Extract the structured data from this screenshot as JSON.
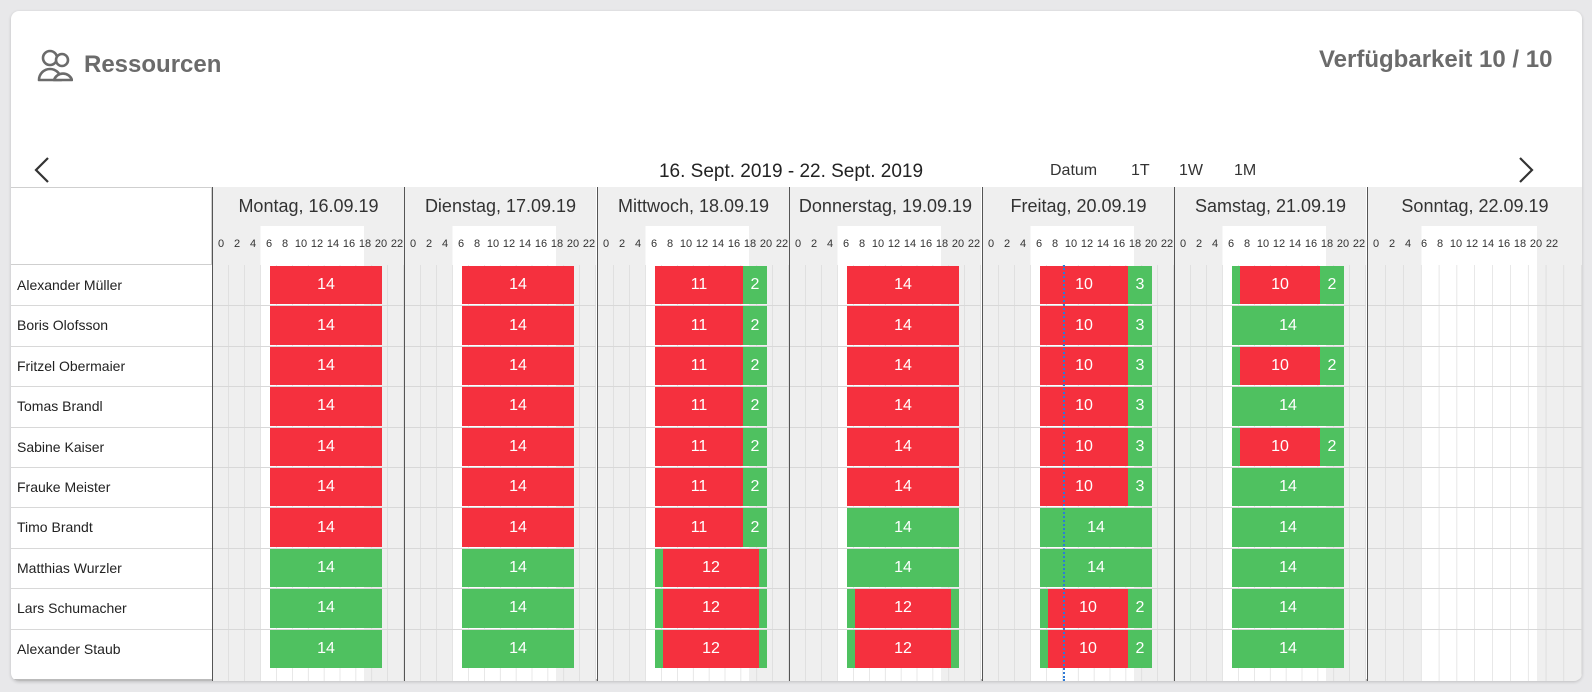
{
  "header": {
    "title": "Ressourcen",
    "availability": "Verfügbarkeit  10 / 10"
  },
  "nav": {
    "range": "16. Sept. 2019 - 22. Sept. 2019",
    "views": [
      "Datum",
      "1T",
      "1W",
      "1M"
    ]
  },
  "colors": {
    "busy": "#f5303e",
    "free": "#4fc160",
    "now": "#2e7bd6"
  },
  "days": [
    "Montag, 16.09.19",
    "Dienstag, 17.09.19",
    "Mittwoch, 18.09.19",
    "Donnerstag, 19.09.19",
    "Freitag, 20.09.19",
    "Samstag, 21.09.19",
    "Sonntag, 22.09.19"
  ],
  "hours": [
    "0",
    "2",
    "4",
    "6",
    "8",
    "10",
    "12",
    "14",
    "16",
    "18",
    "20",
    "22"
  ],
  "resources": [
    "Alexander Müller",
    "Boris Olofsson",
    "Fritzel Obermaier",
    "Tomas Brandl",
    "Sabine Kaiser",
    "Frauke Meister",
    "Timo Brandt",
    "Matthias Wurzler",
    "Lars Schumacher",
    "Alexander Staub"
  ],
  "schedule": [
    [
      [
        {
          "s": "busy",
          "label": "14"
        }
      ],
      [
        {
          "s": "busy",
          "label": "14"
        }
      ],
      [
        {
          "s": "busy",
          "label": "11"
        },
        {
          "s": "free",
          "label": "2"
        }
      ],
      [
        {
          "s": "busy",
          "label": "14"
        }
      ],
      [
        {
          "s": "busy",
          "label": "10"
        },
        {
          "s": "free",
          "label": "3"
        }
      ],
      [
        {
          "s": "free",
          "label": ""
        },
        {
          "s": "busy",
          "label": "10"
        },
        {
          "s": "free",
          "label": "2"
        }
      ],
      []
    ],
    [
      [
        {
          "s": "busy",
          "label": "14"
        }
      ],
      [
        {
          "s": "busy",
          "label": "14"
        }
      ],
      [
        {
          "s": "busy",
          "label": "11"
        },
        {
          "s": "free",
          "label": "2"
        }
      ],
      [
        {
          "s": "busy",
          "label": "14"
        }
      ],
      [
        {
          "s": "busy",
          "label": "10"
        },
        {
          "s": "free",
          "label": "3"
        }
      ],
      [
        {
          "s": "free",
          "label": "14"
        }
      ],
      []
    ],
    [
      [
        {
          "s": "busy",
          "label": "14"
        }
      ],
      [
        {
          "s": "busy",
          "label": "14"
        }
      ],
      [
        {
          "s": "busy",
          "label": "11"
        },
        {
          "s": "free",
          "label": "2"
        }
      ],
      [
        {
          "s": "busy",
          "label": "14"
        }
      ],
      [
        {
          "s": "busy",
          "label": "10"
        },
        {
          "s": "free",
          "label": "3"
        }
      ],
      [
        {
          "s": "free",
          "label": ""
        },
        {
          "s": "busy",
          "label": "10"
        },
        {
          "s": "free",
          "label": "2"
        }
      ],
      []
    ],
    [
      [
        {
          "s": "busy",
          "label": "14"
        }
      ],
      [
        {
          "s": "busy",
          "label": "14"
        }
      ],
      [
        {
          "s": "busy",
          "label": "11"
        },
        {
          "s": "free",
          "label": "2"
        }
      ],
      [
        {
          "s": "busy",
          "label": "14"
        }
      ],
      [
        {
          "s": "busy",
          "label": "10"
        },
        {
          "s": "free",
          "label": "3"
        }
      ],
      [
        {
          "s": "free",
          "label": "14"
        }
      ],
      []
    ],
    [
      [
        {
          "s": "busy",
          "label": "14"
        }
      ],
      [
        {
          "s": "busy",
          "label": "14"
        }
      ],
      [
        {
          "s": "busy",
          "label": "11"
        },
        {
          "s": "free",
          "label": "2"
        }
      ],
      [
        {
          "s": "busy",
          "label": "14"
        }
      ],
      [
        {
          "s": "busy",
          "label": "10"
        },
        {
          "s": "free",
          "label": "3"
        }
      ],
      [
        {
          "s": "free",
          "label": ""
        },
        {
          "s": "busy",
          "label": "10"
        },
        {
          "s": "free",
          "label": "2"
        }
      ],
      []
    ],
    [
      [
        {
          "s": "busy",
          "label": "14"
        }
      ],
      [
        {
          "s": "busy",
          "label": "14"
        }
      ],
      [
        {
          "s": "busy",
          "label": "11"
        },
        {
          "s": "free",
          "label": "2"
        }
      ],
      [
        {
          "s": "busy",
          "label": "14"
        }
      ],
      [
        {
          "s": "busy",
          "label": "10"
        },
        {
          "s": "free",
          "label": "3"
        }
      ],
      [
        {
          "s": "free",
          "label": "14"
        }
      ],
      []
    ],
    [
      [
        {
          "s": "busy",
          "label": "14"
        }
      ],
      [
        {
          "s": "busy",
          "label": "14"
        }
      ],
      [
        {
          "s": "busy",
          "label": "11"
        },
        {
          "s": "free",
          "label": "2"
        }
      ],
      [
        {
          "s": "free",
          "label": "14"
        }
      ],
      [
        {
          "s": "free",
          "label": "14"
        }
      ],
      [
        {
          "s": "free",
          "label": "14"
        }
      ],
      []
    ],
    [
      [
        {
          "s": "free",
          "label": "14"
        }
      ],
      [
        {
          "s": "free",
          "label": "14"
        }
      ],
      [
        {
          "s": "free",
          "label": ""
        },
        {
          "s": "busy",
          "label": "12"
        },
        {
          "s": "free",
          "label": ""
        }
      ],
      [
        {
          "s": "free",
          "label": "14"
        }
      ],
      [
        {
          "s": "free",
          "label": "14"
        }
      ],
      [
        {
          "s": "free",
          "label": "14"
        }
      ],
      []
    ],
    [
      [
        {
          "s": "free",
          "label": "14"
        }
      ],
      [
        {
          "s": "free",
          "label": "14"
        }
      ],
      [
        {
          "s": "free",
          "label": ""
        },
        {
          "s": "busy",
          "label": "12"
        },
        {
          "s": "free",
          "label": ""
        }
      ],
      [
        {
          "s": "free",
          "label": ""
        },
        {
          "s": "busy",
          "label": "12"
        },
        {
          "s": "free",
          "label": ""
        }
      ],
      [
        {
          "s": "free",
          "label": ""
        },
        {
          "s": "busy",
          "label": "10"
        },
        {
          "s": "free",
          "label": "2"
        }
      ],
      [
        {
          "s": "free",
          "label": "14"
        }
      ],
      []
    ],
    [
      [
        {
          "s": "free",
          "label": "14"
        }
      ],
      [
        {
          "s": "free",
          "label": "14"
        }
      ],
      [
        {
          "s": "free",
          "label": ""
        },
        {
          "s": "busy",
          "label": "12"
        },
        {
          "s": "free",
          "label": ""
        }
      ],
      [
        {
          "s": "free",
          "label": ""
        },
        {
          "s": "busy",
          "label": "12"
        },
        {
          "s": "free",
          "label": ""
        }
      ],
      [
        {
          "s": "free",
          "label": ""
        },
        {
          "s": "busy",
          "label": "10"
        },
        {
          "s": "free",
          "label": "2"
        }
      ],
      [
        {
          "s": "free",
          "label": "14"
        }
      ],
      []
    ]
  ]
}
